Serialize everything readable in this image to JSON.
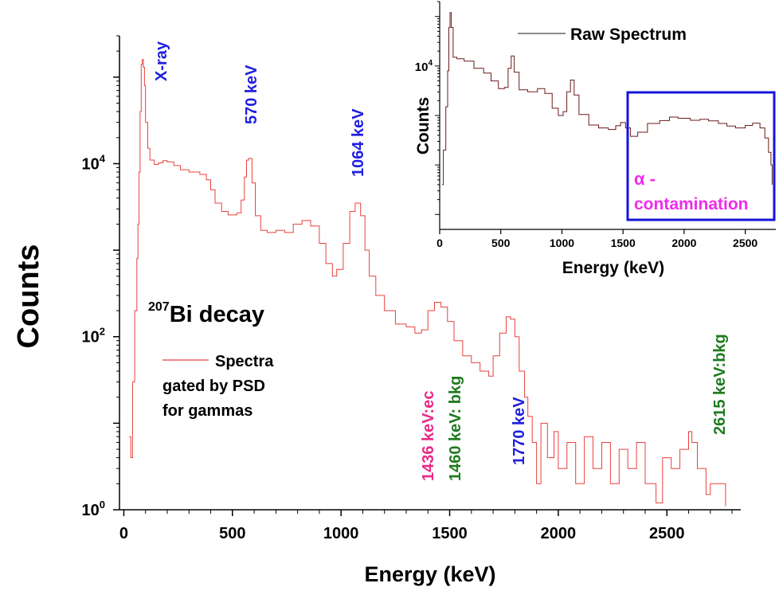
{
  "chart_data": [
    {
      "type": "line",
      "xlabel": "Energy (keV)",
      "ylabel": "Counts",
      "y_scale": "log",
      "xlim": [
        -20,
        2840
      ],
      "ylim": [
        1,
        300000
      ],
      "x_ticks": [
        "0",
        "500",
        "1000",
        "1500",
        "2000",
        "2500"
      ],
      "x_tick_values": [
        0,
        500,
        1000,
        1500,
        2000,
        2500
      ],
      "y_ticks": [
        {
          "base": "10",
          "exp": "0",
          "value": 1
        },
        {
          "base": "10",
          "exp": "2",
          "value": 100
        },
        {
          "base": "10",
          "exp": "4",
          "value": 10000
        }
      ],
      "title_pre": "207",
      "title_main": "Bi decay",
      "legend": {
        "line1": "Spectra",
        "line2": "gated by PSD",
        "line3": "for gammas",
        "color": "#e8413f"
      },
      "series_color": "#e8413f",
      "series": [
        {
          "name": "Spectra gated by PSD for gammas",
          "points": [
            [
              25,
              7
            ],
            [
              32,
              4
            ],
            [
              40,
              30
            ],
            [
              50,
              200
            ],
            [
              60,
              800
            ],
            [
              65,
              2000
            ],
            [
              70,
              8000
            ],
            [
              75,
              40000
            ],
            [
              80,
              140000
            ],
            [
              85,
              160000
            ],
            [
              90,
              130000
            ],
            [
              95,
              80000
            ],
            [
              100,
              30000
            ],
            [
              110,
              15000
            ],
            [
              120,
              11000
            ],
            [
              140,
              9800
            ],
            [
              160,
              10200
            ],
            [
              180,
              10800
            ],
            [
              200,
              10500
            ],
            [
              230,
              9500
            ],
            [
              260,
              8500
            ],
            [
              300,
              8000
            ],
            [
              350,
              7500
            ],
            [
              380,
              6500
            ],
            [
              400,
              5000
            ],
            [
              420,
              3500
            ],
            [
              450,
              2800
            ],
            [
              480,
              2550
            ],
            [
              520,
              2700
            ],
            [
              540,
              3800
            ],
            [
              555,
              7000
            ],
            [
              565,
              11000
            ],
            [
              575,
              11500
            ],
            [
              590,
              6000
            ],
            [
              605,
              2500
            ],
            [
              630,
              1700
            ],
            [
              660,
              1600
            ],
            [
              700,
              1700
            ],
            [
              740,
              1600
            ],
            [
              780,
              2000
            ],
            [
              820,
              2200
            ],
            [
              860,
              1900
            ],
            [
              900,
              1200
            ],
            [
              930,
              700
            ],
            [
              960,
              500
            ],
            [
              980,
              600
            ],
            [
              1010,
              1200
            ],
            [
              1040,
              2800
            ],
            [
              1065,
              3500
            ],
            [
              1090,
              2500
            ],
            [
              1110,
              1000
            ],
            [
              1130,
              500
            ],
            [
              1160,
              300
            ],
            [
              1200,
              200
            ],
            [
              1250,
              140
            ],
            [
              1300,
              130
            ],
            [
              1340,
              110
            ],
            [
              1370,
              120
            ],
            [
              1400,
              200
            ],
            [
              1430,
              250
            ],
            [
              1460,
              220
            ],
            [
              1490,
              150
            ],
            [
              1520,
              90
            ],
            [
              1560,
              60
            ],
            [
              1600,
              50
            ],
            [
              1640,
              40
            ],
            [
              1680,
              35
            ],
            [
              1700,
              60
            ],
            [
              1730,
              110
            ],
            [
              1760,
              170
            ],
            [
              1780,
              160
            ],
            [
              1800,
              100
            ],
            [
              1820,
              40
            ],
            [
              1845,
              20
            ],
            [
              1860,
              12
            ],
            [
              1880,
              6
            ],
            [
              1900,
              2
            ],
            [
              1920,
              10
            ],
            [
              1950,
              4
            ],
            [
              1980,
              8
            ],
            [
              2000,
              3
            ],
            [
              2040,
              6
            ],
            [
              2080,
              2
            ],
            [
              2120,
              7
            ],
            [
              2160,
              3
            ],
            [
              2200,
              6
            ],
            [
              2240,
              2
            ],
            [
              2280,
              5
            ],
            [
              2320,
              3
            ],
            [
              2360,
              6
            ],
            [
              2400,
              2
            ],
            [
              2450,
              1.2
            ],
            [
              2480,
              4
            ],
            [
              2520,
              3
            ],
            [
              2560,
              5
            ],
            [
              2600,
              8
            ],
            [
              2615,
              6
            ],
            [
              2640,
              3
            ],
            [
              2680,
              1.5
            ],
            [
              2700,
              2
            ],
            [
              2760,
              2
            ],
            [
              2770,
              1.1
            ]
          ]
        }
      ],
      "annotations": [
        {
          "text": "X-ray",
          "x": 95,
          "color": "#1f1fe0"
        },
        {
          "text": "570 keV",
          "x": 580,
          "color": "#1f1fe0"
        },
        {
          "text": "1064 keV",
          "x": 1070,
          "color": "#1f1fe0"
        },
        {
          "text": "1436 keV:ec",
          "x": 1380,
          "color": "#e82b87"
        },
        {
          "text": "1460 keV: bkg",
          "x": 1500,
          "color": "#1f7a1f"
        },
        {
          "text": "1770 keV",
          "x": 1750,
          "color": "#1f1fe0"
        },
        {
          "text": "2615 keV:bkg",
          "x": 2635,
          "color": "#1f7a1f"
        }
      ]
    },
    {
      "type": "line",
      "inset": true,
      "xlabel": "Energy (keV)",
      "ylabel": "Counts",
      "y_scale": "log",
      "xlim": [
        0,
        2750
      ],
      "x_ticks": [
        "0",
        "500",
        "1000",
        "1500",
        "2000",
        "2500"
      ],
      "x_tick_values": [
        0,
        500,
        1000,
        1500,
        2000,
        2500
      ],
      "y_ticks": [
        {
          "base": "10",
          "exp": "4",
          "value": 10000
        }
      ],
      "legend": {
        "label": "Raw Spectrum"
      },
      "series_color": "#6b1a1a",
      "series": [
        {
          "name": "Raw Spectrum",
          "points": [
            [
              20,
              40
            ],
            [
              30,
              200
            ],
            [
              50,
              1500
            ],
            [
              65,
              8000
            ],
            [
              75,
              60000
            ],
            [
              85,
              120000
            ],
            [
              95,
              60000
            ],
            [
              110,
              15000
            ],
            [
              140,
              14000
            ],
            [
              200,
              12500
            ],
            [
              280,
              9000
            ],
            [
              360,
              7200
            ],
            [
              420,
              5000
            ],
            [
              480,
              3500
            ],
            [
              530,
              3700
            ],
            [
              560,
              9000
            ],
            [
              585,
              16000
            ],
            [
              610,
              7500
            ],
            [
              650,
              3300
            ],
            [
              720,
              3000
            ],
            [
              800,
              3500
            ],
            [
              860,
              2800
            ],
            [
              920,
              1400
            ],
            [
              970,
              1000
            ],
            [
              1010,
              1200
            ],
            [
              1040,
              3000
            ],
            [
              1070,
              5200
            ],
            [
              1100,
              2600
            ],
            [
              1140,
              1050
            ],
            [
              1220,
              640
            ],
            [
              1300,
              560
            ],
            [
              1380,
              520
            ],
            [
              1440,
              620
            ],
            [
              1480,
              720
            ],
            [
              1520,
              560
            ],
            [
              1560,
              380
            ],
            [
              1620,
              460
            ],
            [
              1700,
              690
            ],
            [
              1800,
              790
            ],
            [
              1880,
              930
            ],
            [
              1950,
              880
            ],
            [
              2050,
              800
            ],
            [
              2130,
              840
            ],
            [
              2200,
              780
            ],
            [
              2280,
              690
            ],
            [
              2350,
              610
            ],
            [
              2420,
              560
            ],
            [
              2500,
              630
            ],
            [
              2560,
              700
            ],
            [
              2620,
              560
            ],
            [
              2660,
              350
            ],
            [
              2690,
              180
            ],
            [
              2710,
              100
            ],
            [
              2720,
              40
            ]
          ]
        }
      ],
      "box_color": "#1515d8",
      "box_label_symbol": "α -",
      "box_label_text": "contamination",
      "box_label_color": "#ee2cec"
    }
  ]
}
